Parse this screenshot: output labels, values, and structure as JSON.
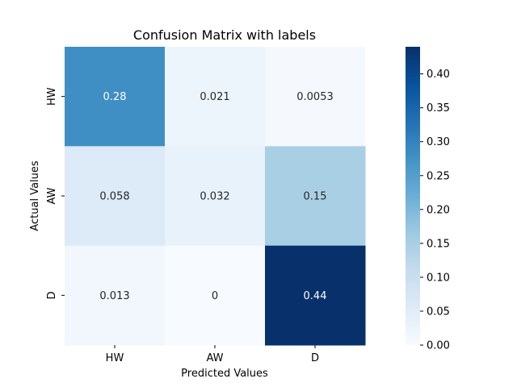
{
  "chart_data": {
    "type": "heatmap",
    "title": "Confusion Matrix with labels",
    "xlabel": "Predicted Values",
    "ylabel": "Actual Values",
    "x_categories": [
      "HW",
      "AW",
      "D"
    ],
    "y_categories": [
      "HW",
      "AW",
      "D"
    ],
    "values": [
      [
        0.28,
        0.021,
        0.0053
      ],
      [
        0.058,
        0.032,
        0.15
      ],
      [
        0.013,
        0,
        0.44
      ]
    ],
    "cell_labels": [
      [
        "0.28",
        "0.021",
        "0.0053"
      ],
      [
        "0.058",
        "0.032",
        "0.15"
      ],
      [
        "0.013",
        "0",
        "0.44"
      ]
    ],
    "colorbar": {
      "min": 0.0,
      "max": 0.44,
      "ticks": [
        0.0,
        0.05,
        0.1,
        0.15,
        0.2,
        0.25,
        0.3,
        0.35,
        0.4
      ],
      "tick_labels": [
        "0.00",
        "0.05",
        "0.10",
        "0.15",
        "0.20",
        "0.25",
        "0.30",
        "0.35",
        "0.40"
      ]
    },
    "colormap": "Blues",
    "colors": {
      "low": "#f7fbff",
      "high": "#08306b",
      "text_dark": "#262626",
      "text_light": "#ffffff"
    }
  }
}
